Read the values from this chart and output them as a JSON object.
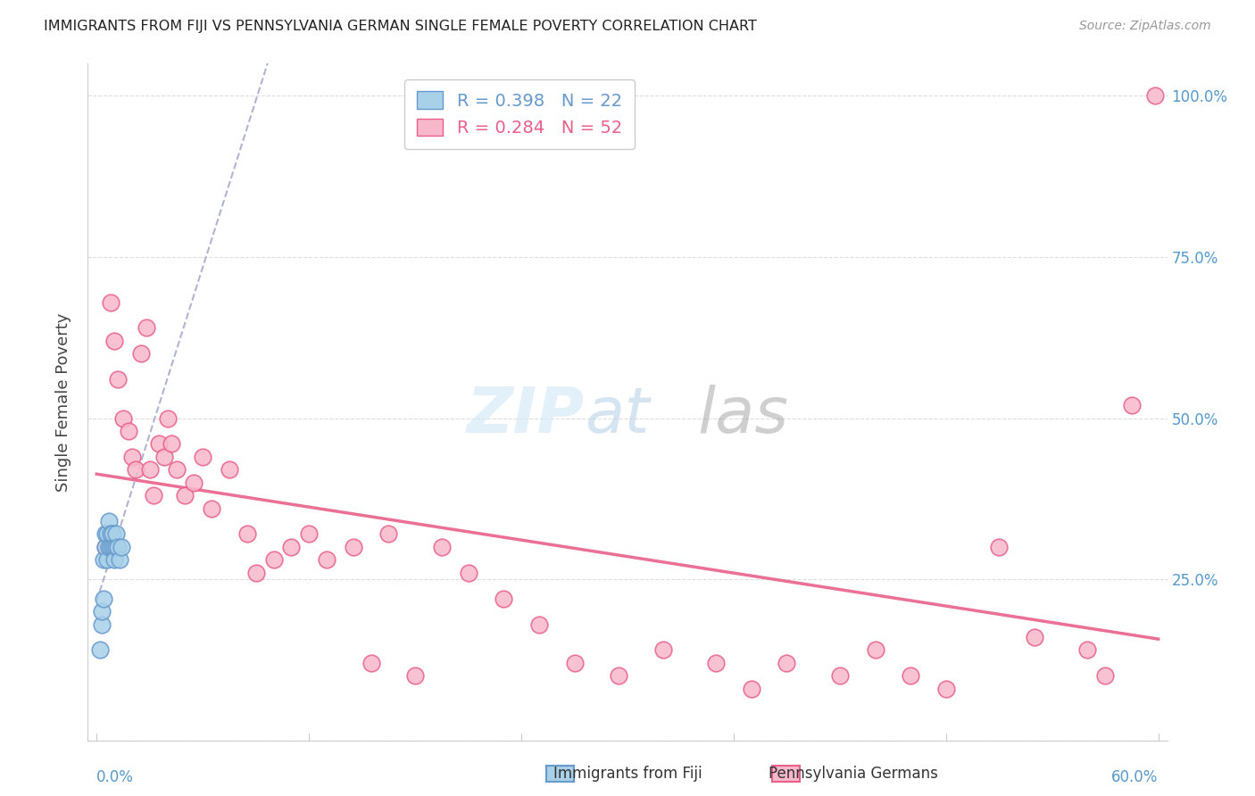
{
  "title": "IMMIGRANTS FROM FIJI VS PENNSYLVANIA GERMAN SINGLE FEMALE POVERTY CORRELATION CHART",
  "source": "Source: ZipAtlas.com",
  "ylabel": "Single Female Poverty",
  "fiji_R": 0.398,
  "fiji_N": 22,
  "penn_R": 0.284,
  "penn_N": 52,
  "fiji_color": "#A8D0E8",
  "penn_color": "#F7B8CC",
  "fiji_line_color": "#6699CC",
  "penn_line_color": "#E8608A",
  "legend_fiji_label": "Immigrants from Fiji",
  "legend_penn_label": "Pennsylvania Germans",
  "fiji_x": [
    0.002,
    0.003,
    0.003,
    0.004,
    0.004,
    0.005,
    0.005,
    0.006,
    0.006,
    0.007,
    0.007,
    0.008,
    0.008,
    0.009,
    0.009,
    0.01,
    0.01,
    0.011,
    0.011,
    0.012,
    0.013,
    0.014
  ],
  "fiji_y": [
    0.14,
    0.18,
    0.2,
    0.22,
    0.28,
    0.3,
    0.32,
    0.28,
    0.32,
    0.3,
    0.34,
    0.3,
    0.32,
    0.3,
    0.32,
    0.3,
    0.28,
    0.3,
    0.32,
    0.3,
    0.28,
    0.3
  ],
  "penn_x": [
    0.005,
    0.008,
    0.01,
    0.012,
    0.015,
    0.018,
    0.02,
    0.022,
    0.025,
    0.028,
    0.03,
    0.032,
    0.035,
    0.038,
    0.04,
    0.042,
    0.045,
    0.05,
    0.055,
    0.06,
    0.065,
    0.075,
    0.085,
    0.09,
    0.1,
    0.11,
    0.12,
    0.13,
    0.145,
    0.155,
    0.165,
    0.18,
    0.195,
    0.21,
    0.23,
    0.25,
    0.27,
    0.295,
    0.32,
    0.35,
    0.37,
    0.39,
    0.42,
    0.44,
    0.46,
    0.48,
    0.51,
    0.53,
    0.56,
    0.57,
    0.585,
    0.598
  ],
  "penn_y": [
    0.3,
    0.68,
    0.62,
    0.56,
    0.5,
    0.48,
    0.44,
    0.42,
    0.6,
    0.64,
    0.42,
    0.38,
    0.46,
    0.44,
    0.5,
    0.46,
    0.42,
    0.38,
    0.4,
    0.44,
    0.36,
    0.42,
    0.32,
    0.26,
    0.28,
    0.3,
    0.32,
    0.28,
    0.3,
    0.12,
    0.32,
    0.1,
    0.3,
    0.26,
    0.22,
    0.18,
    0.12,
    0.1,
    0.14,
    0.12,
    0.08,
    0.12,
    0.1,
    0.14,
    0.1,
    0.08,
    0.3,
    0.16,
    0.14,
    0.1,
    0.52,
    1.0
  ],
  "xmin": 0.0,
  "xmax": 0.6,
  "ymin": 0.0,
  "ymax": 1.05,
  "grid_yticks": [
    0.0,
    0.25,
    0.5,
    0.75,
    1.0
  ],
  "right_yticklabels": [
    "",
    "25.0%",
    "50.0%",
    "75.0%",
    "100.0%"
  ],
  "background_color": "#FFFFFF",
  "grid_color": "#DDDDDD",
  "title_color": "#222222",
  "source_color": "#999999",
  "right_axis_color": "#5599CC"
}
